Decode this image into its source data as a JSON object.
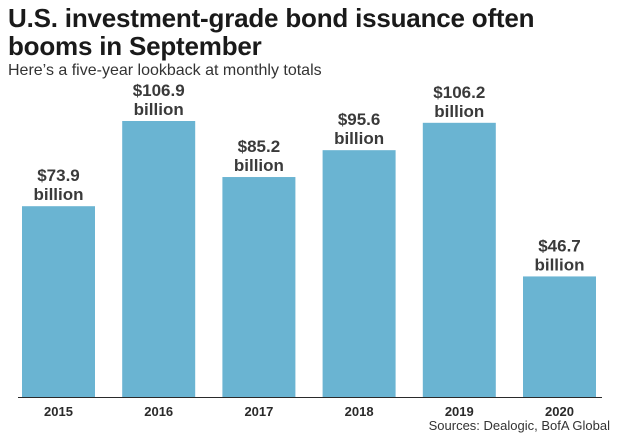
{
  "title": "U.S. investment-grade bond issuance often booms in September",
  "subtitle": "Here’s a five-year lookback at monthly totals",
  "source": "Sources: Dealogic, BofA Global",
  "colors": {
    "bar": "#6ab4d2",
    "label": "#3a3a3a",
    "axis": "#2a2a2a"
  },
  "chart_data": {
    "type": "bar",
    "title": "U.S. investment-grade bond issuance often booms in September",
    "subtitle": "Here’s a five-year lookback at monthly totals",
    "categories": [
      "2015",
      "2016",
      "2017",
      "2018",
      "2019",
      "2020"
    ],
    "values": [
      73.9,
      106.9,
      85.2,
      95.6,
      106.2,
      46.7
    ],
    "value_labels": [
      "$73.9",
      "$106.9",
      "$85.2",
      "$95.6",
      "$106.2",
      "$46.7"
    ],
    "unit_label": "billion",
    "xlabel": "",
    "ylabel": "",
    "ylim": [
      0,
      106.9
    ],
    "grid": false,
    "legend": "none"
  }
}
